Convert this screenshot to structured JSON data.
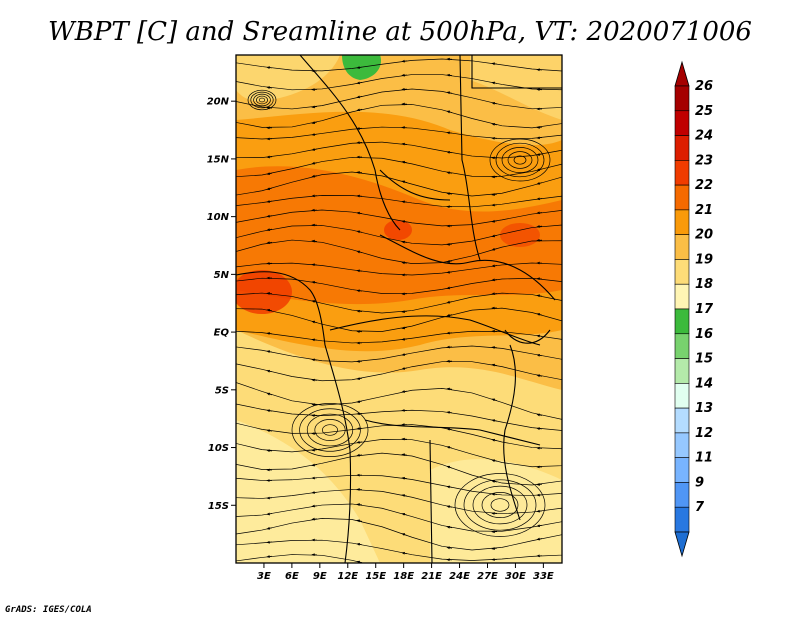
{
  "title": "WBPT [C] and Sreamline at 500hPa, VT: 2020071006",
  "credit": "GrADS: IGES/COLA",
  "map": {
    "lon_range": [
      0,
      35
    ],
    "lat_range": [
      -20,
      24
    ],
    "lat_ticks": [
      {
        "label": "20N",
        "lat": 20
      },
      {
        "label": "15N",
        "lat": 15
      },
      {
        "label": "10N",
        "lat": 10
      },
      {
        "label": "5N",
        "lat": 5
      },
      {
        "label": "EQ",
        "lat": 0
      },
      {
        "label": "5S",
        "lat": -5
      },
      {
        "label": "10S",
        "lat": -10
      },
      {
        "label": "15S",
        "lat": -15
      }
    ],
    "lon_ticks": [
      {
        "label": "3E",
        "lon": 3
      },
      {
        "label": "6E",
        "lon": 6
      },
      {
        "label": "9E",
        "lon": 9
      },
      {
        "label": "12E",
        "lon": 12
      },
      {
        "label": "15E",
        "lon": 15
      },
      {
        "label": "18E",
        "lon": 18
      },
      {
        "label": "21E",
        "lon": 21
      },
      {
        "label": "24E",
        "lon": 24
      },
      {
        "label": "27E",
        "lon": 27
      },
      {
        "label": "30E",
        "lon": 30
      },
      {
        "label": "33E",
        "lon": 33
      }
    ]
  },
  "colorbar": {
    "levels": [
      {
        "label": "26",
        "color": "#a50000"
      },
      {
        "label": "25",
        "color": "#c00000"
      },
      {
        "label": "24",
        "color": "#dc1e00"
      },
      {
        "label": "23",
        "color": "#f03c00"
      },
      {
        "label": "22",
        "color": "#f56a00"
      },
      {
        "label": "21",
        "color": "#f99a0a"
      },
      {
        "label": "20",
        "color": "#fbbe46"
      },
      {
        "label": "19",
        "color": "#fddc78"
      },
      {
        "label": "18",
        "color": "#fff5b4"
      },
      {
        "label": "17",
        "color": "#3cba3c"
      },
      {
        "label": "16",
        "color": "#78d26e"
      },
      {
        "label": "15",
        "color": "#b4eaaa"
      },
      {
        "label": "14",
        "color": "#e1fff0"
      },
      {
        "label": "13",
        "color": "#b4dcff"
      },
      {
        "label": "12",
        "color": "#96c8ff"
      },
      {
        "label": "11",
        "color": "#78b4ff"
      },
      {
        "label": "9",
        "color": "#5096f5"
      },
      {
        "label": "7",
        "color": "#2878e1"
      }
    ],
    "under_color": "#1e6ed2"
  }
}
